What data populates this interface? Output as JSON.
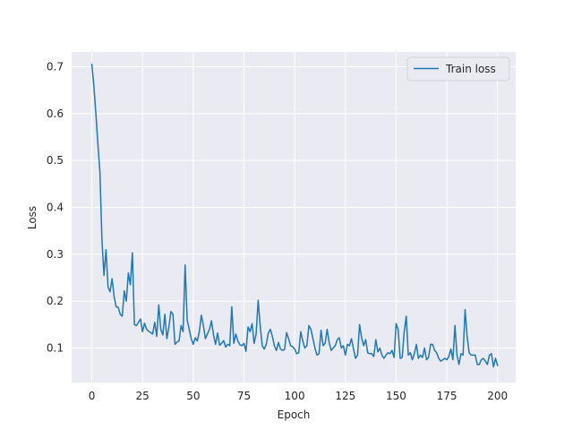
{
  "chart_data": {
    "type": "line",
    "title": "",
    "xlabel": "Epoch",
    "ylabel": "Loss",
    "xlim": [
      -9.95,
      208.95
    ],
    "ylim": [
      0.0265,
      0.7315
    ],
    "xticks": [
      0,
      25,
      50,
      75,
      100,
      125,
      150,
      175,
      200
    ],
    "yticks": [
      0.1,
      0.2,
      0.3,
      0.4,
      0.5,
      0.6,
      0.7
    ],
    "xtick_labels": [
      "0",
      "25",
      "50",
      "75",
      "100",
      "125",
      "150",
      "175",
      "200"
    ],
    "ytick_labels": [
      "0.1",
      "0.2",
      "0.3",
      "0.4",
      "0.5",
      "0.6",
      "0.7"
    ],
    "grid": true,
    "background": "#eaeaf2",
    "legend_position": "top-right",
    "series": [
      {
        "name": "Train loss",
        "color": "#1f77b4",
        "points": [
          [
            0,
            0.705
          ],
          [
            1,
            0.66
          ],
          [
            2,
            0.6
          ],
          [
            3,
            0.535
          ],
          [
            4,
            0.475
          ],
          [
            5,
            0.33
          ],
          [
            6,
            0.255
          ],
          [
            7,
            0.31
          ],
          [
            8,
            0.23
          ],
          [
            9,
            0.22
          ],
          [
            10,
            0.248
          ],
          [
            11,
            0.21
          ],
          [
            12,
            0.188
          ],
          [
            13,
            0.187
          ],
          [
            14,
            0.172
          ],
          [
            15,
            0.168
          ],
          [
            16,
            0.222
          ],
          [
            17,
            0.2
          ],
          [
            18,
            0.26
          ],
          [
            19,
            0.235
          ],
          [
            20,
            0.303
          ],
          [
            21,
            0.15
          ],
          [
            22,
            0.148
          ],
          [
            23,
            0.155
          ],
          [
            24,
            0.162
          ],
          [
            25,
            0.135
          ],
          [
            26,
            0.153
          ],
          [
            27,
            0.14
          ],
          [
            28,
            0.136
          ],
          [
            29,
            0.133
          ],
          [
            30,
            0.13
          ],
          [
            31,
            0.155
          ],
          [
            32,
            0.125
          ],
          [
            33,
            0.192
          ],
          [
            34,
            0.14
          ],
          [
            35,
            0.128
          ],
          [
            36,
            0.172
          ],
          [
            37,
            0.12
          ],
          [
            38,
            0.145
          ],
          [
            39,
            0.178
          ],
          [
            40,
            0.172
          ],
          [
            41,
            0.108
          ],
          [
            42,
            0.113
          ],
          [
            43,
            0.115
          ],
          [
            44,
            0.148
          ],
          [
            45,
            0.135
          ],
          [
            46,
            0.277
          ],
          [
            47,
            0.16
          ],
          [
            48,
            0.14
          ],
          [
            49,
            0.12
          ],
          [
            50,
            0.108
          ],
          [
            51,
            0.122
          ],
          [
            52,
            0.115
          ],
          [
            53,
            0.135
          ],
          [
            54,
            0.17
          ],
          [
            55,
            0.148
          ],
          [
            56,
            0.12
          ],
          [
            57,
            0.13
          ],
          [
            58,
            0.14
          ],
          [
            59,
            0.158
          ],
          [
            60,
            0.128
          ],
          [
            61,
            0.108
          ],
          [
            62,
            0.132
          ],
          [
            63,
            0.106
          ],
          [
            64,
            0.11
          ],
          [
            65,
            0.116
          ],
          [
            66,
            0.102
          ],
          [
            67,
            0.108
          ],
          [
            68,
            0.105
          ],
          [
            69,
            0.188
          ],
          [
            70,
            0.11
          ],
          [
            71,
            0.13
          ],
          [
            72,
            0.115
          ],
          [
            73,
            0.107
          ],
          [
            74,
            0.105
          ],
          [
            75,
            0.11
          ],
          [
            76,
            0.093
          ],
          [
            77,
            0.145
          ],
          [
            78,
            0.135
          ],
          [
            79,
            0.152
          ],
          [
            80,
            0.11
          ],
          [
            81,
            0.13
          ],
          [
            82,
            0.202
          ],
          [
            83,
            0.148
          ],
          [
            84,
            0.105
          ],
          [
            85,
            0.098
          ],
          [
            86,
            0.108
          ],
          [
            87,
            0.132
          ],
          [
            88,
            0.14
          ],
          [
            89,
            0.125
          ],
          [
            90,
            0.105
          ],
          [
            91,
            0.095
          ],
          [
            92,
            0.112
          ],
          [
            93,
            0.098
          ],
          [
            94,
            0.095
          ],
          [
            95,
            0.097
          ],
          [
            96,
            0.133
          ],
          [
            97,
            0.12
          ],
          [
            98,
            0.105
          ],
          [
            99,
            0.103
          ],
          [
            100,
            0.098
          ],
          [
            101,
            0.088
          ],
          [
            102,
            0.09
          ],
          [
            103,
            0.135
          ],
          [
            104,
            0.115
          ],
          [
            105,
            0.1
          ],
          [
            106,
            0.105
          ],
          [
            107,
            0.148
          ],
          [
            108,
            0.14
          ],
          [
            109,
            0.12
          ],
          [
            110,
            0.1
          ],
          [
            111,
            0.085
          ],
          [
            112,
            0.088
          ],
          [
            113,
            0.138
          ],
          [
            114,
            0.105
          ],
          [
            115,
            0.11
          ],
          [
            116,
            0.14
          ],
          [
            117,
            0.112
          ],
          [
            118,
            0.095
          ],
          [
            119,
            0.1
          ],
          [
            120,
            0.105
          ],
          [
            121,
            0.118
          ],
          [
            122,
            0.122
          ],
          [
            123,
            0.1
          ],
          [
            124,
            0.105
          ],
          [
            125,
            0.085
          ],
          [
            126,
            0.108
          ],
          [
            127,
            0.105
          ],
          [
            128,
            0.12
          ],
          [
            129,
            0.098
          ],
          [
            130,
            0.078
          ],
          [
            131,
            0.085
          ],
          [
            132,
            0.15
          ],
          [
            133,
            0.122
          ],
          [
            134,
            0.105
          ],
          [
            135,
            0.118
          ],
          [
            136,
            0.09
          ],
          [
            137,
            0.088
          ],
          [
            138,
            0.088
          ],
          [
            139,
            0.082
          ],
          [
            140,
            0.118
          ],
          [
            141,
            0.092
          ],
          [
            142,
            0.1
          ],
          [
            143,
            0.085
          ],
          [
            144,
            0.078
          ],
          [
            145,
            0.085
          ],
          [
            146,
            0.09
          ],
          [
            147,
            0.088
          ],
          [
            148,
            0.095
          ],
          [
            149,
            0.08
          ],
          [
            150,
            0.152
          ],
          [
            151,
            0.14
          ],
          [
            152,
            0.078
          ],
          [
            153,
            0.08
          ],
          [
            154,
            0.135
          ],
          [
            155,
            0.168
          ],
          [
            156,
            0.085
          ],
          [
            157,
            0.09
          ],
          [
            158,
            0.075
          ],
          [
            159,
            0.088
          ],
          [
            160,
            0.108
          ],
          [
            161,
            0.078
          ],
          [
            162,
            0.085
          ],
          [
            163,
            0.08
          ],
          [
            164,
            0.1
          ],
          [
            165,
            0.075
          ],
          [
            166,
            0.08
          ],
          [
            167,
            0.108
          ],
          [
            168,
            0.108
          ],
          [
            169,
            0.095
          ],
          [
            170,
            0.09
          ],
          [
            171,
            0.078
          ],
          [
            172,
            0.072
          ],
          [
            173,
            0.075
          ],
          [
            174,
            0.078
          ],
          [
            175,
            0.075
          ],
          [
            176,
            0.082
          ],
          [
            177,
            0.098
          ],
          [
            178,
            0.075
          ],
          [
            179,
            0.148
          ],
          [
            180,
            0.085
          ],
          [
            181,
            0.065
          ],
          [
            182,
            0.088
          ],
          [
            183,
            0.085
          ],
          [
            184,
            0.182
          ],
          [
            185,
            0.125
          ],
          [
            186,
            0.09
          ],
          [
            187,
            0.085
          ],
          [
            188,
            0.085
          ],
          [
            189,
            0.085
          ],
          [
            190,
            0.065
          ],
          [
            191,
            0.065
          ],
          [
            192,
            0.075
          ],
          [
            193,
            0.078
          ],
          [
            194,
            0.072
          ],
          [
            195,
            0.065
          ],
          [
            196,
            0.085
          ],
          [
            197,
            0.088
          ],
          [
            198,
            0.06
          ],
          [
            199,
            0.078
          ],
          [
            200,
            0.063
          ]
        ]
      }
    ]
  }
}
